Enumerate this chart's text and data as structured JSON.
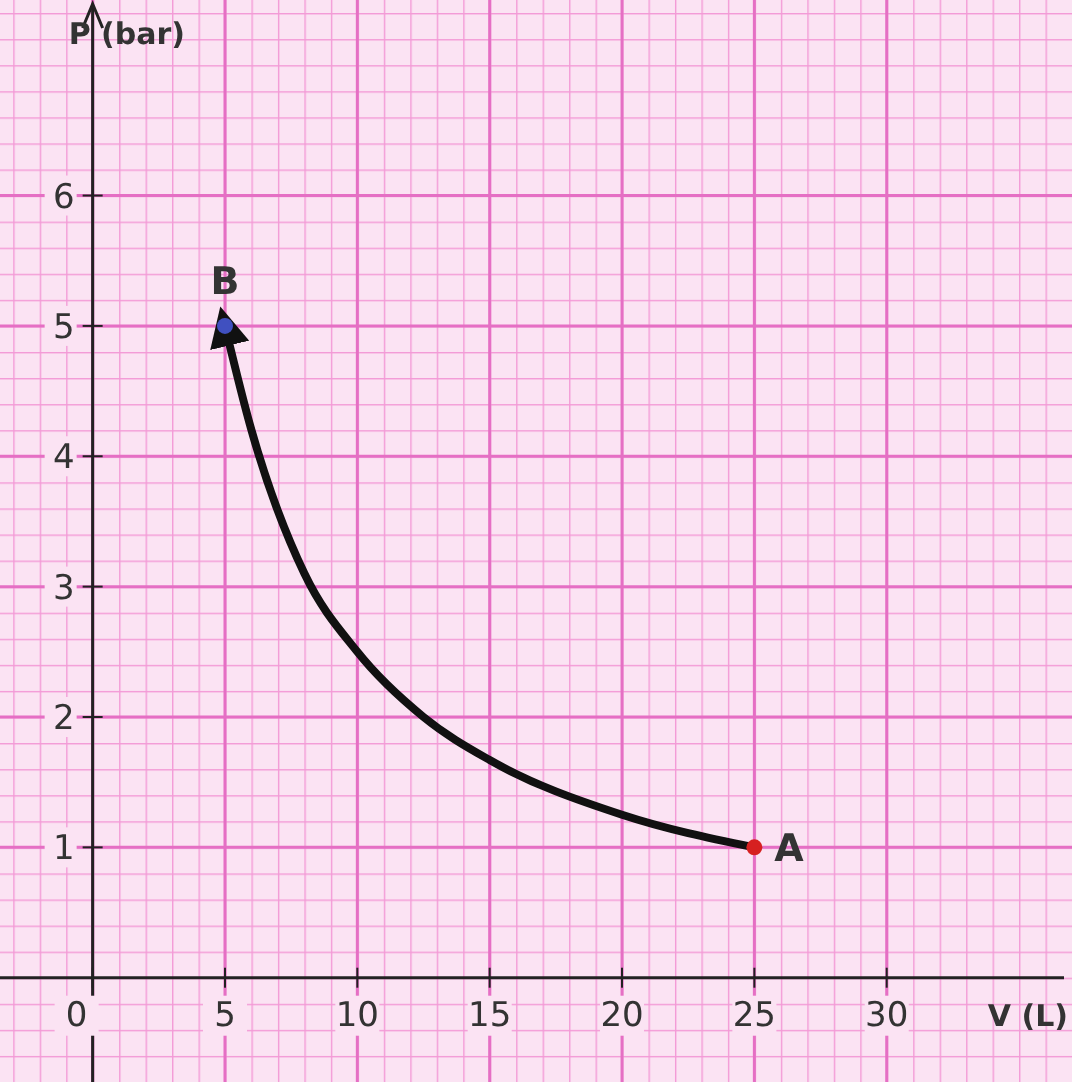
{
  "chart_data": {
    "type": "line",
    "xlabel": "V (L)",
    "ylabel": "P (bar)",
    "xlim": [
      -3.5,
      37
    ],
    "ylim": [
      -0.8,
      7.5
    ],
    "xticks": [
      0,
      5,
      10,
      15,
      20,
      25,
      30
    ],
    "yticks": [
      1,
      2,
      3,
      4,
      5,
      6
    ],
    "grid": true,
    "series": [
      {
        "color": "#111111",
        "x": [
          25,
          20,
          15,
          12.5,
          10,
          8,
          6,
          5
        ],
        "values": [
          1,
          1.25,
          1.67,
          2,
          2.5,
          3.1,
          4.2,
          5
        ]
      },
      {
        "type": "scatter",
        "colors": [
          "#d62020",
          "#4050c0"
        ],
        "x": [
          25,
          5
        ],
        "values": [
          1,
          5
        ]
      }
    ],
    "annotations": [
      {
        "text": "A",
        "x": 25,
        "y": 1
      },
      {
        "text": "B",
        "x": 5,
        "y": 5
      }
    ]
  }
}
